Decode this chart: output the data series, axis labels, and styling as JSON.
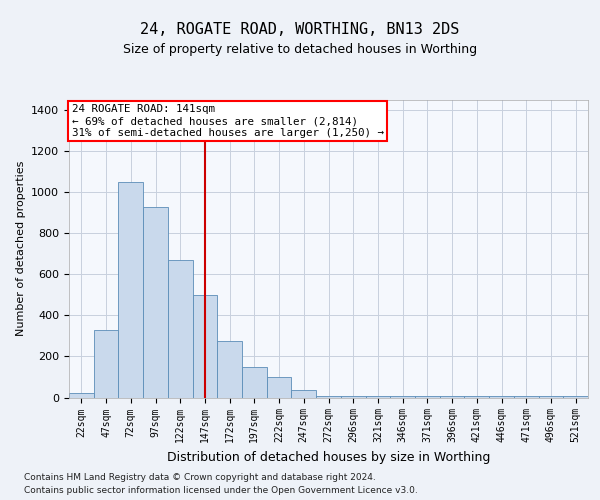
{
  "title": "24, ROGATE ROAD, WORTHING, BN13 2DS",
  "subtitle": "Size of property relative to detached houses in Worthing",
  "xlabel": "Distribution of detached houses by size in Worthing",
  "ylabel": "Number of detached properties",
  "footnote1": "Contains HM Land Registry data © Crown copyright and database right 2024.",
  "footnote2": "Contains public sector information licensed under the Open Government Licence v3.0.",
  "annotation_line1": "24 ROGATE ROAD: 141sqm",
  "annotation_line2": "← 69% of detached houses are smaller (2,814)",
  "annotation_line3": "31% of semi-detached houses are larger (1,250) →",
  "bar_color": "#c9d9ec",
  "bar_edge_color": "#5b8db8",
  "vline_color": "#cc0000",
  "vline_x": 5.0,
  "categories": [
    "22sqm",
    "47sqm",
    "72sqm",
    "97sqm",
    "122sqm",
    "147sqm",
    "172sqm",
    "197sqm",
    "222sqm",
    "247sqm",
    "272sqm",
    "296sqm",
    "321sqm",
    "346sqm",
    "371sqm",
    "396sqm",
    "421sqm",
    "446sqm",
    "471sqm",
    "496sqm",
    "521sqm"
  ],
  "values": [
    20,
    330,
    1050,
    930,
    670,
    500,
    275,
    150,
    100,
    35,
    5,
    5,
    5,
    5,
    5,
    5,
    5,
    5,
    5,
    5,
    5
  ],
  "ylim": [
    0,
    1450
  ],
  "yticks": [
    0,
    200,
    400,
    600,
    800,
    1000,
    1200,
    1400
  ],
  "background_color": "#eef2f8",
  "plot_background": "#f5f8fd",
  "grid_color": "#c8d0de"
}
